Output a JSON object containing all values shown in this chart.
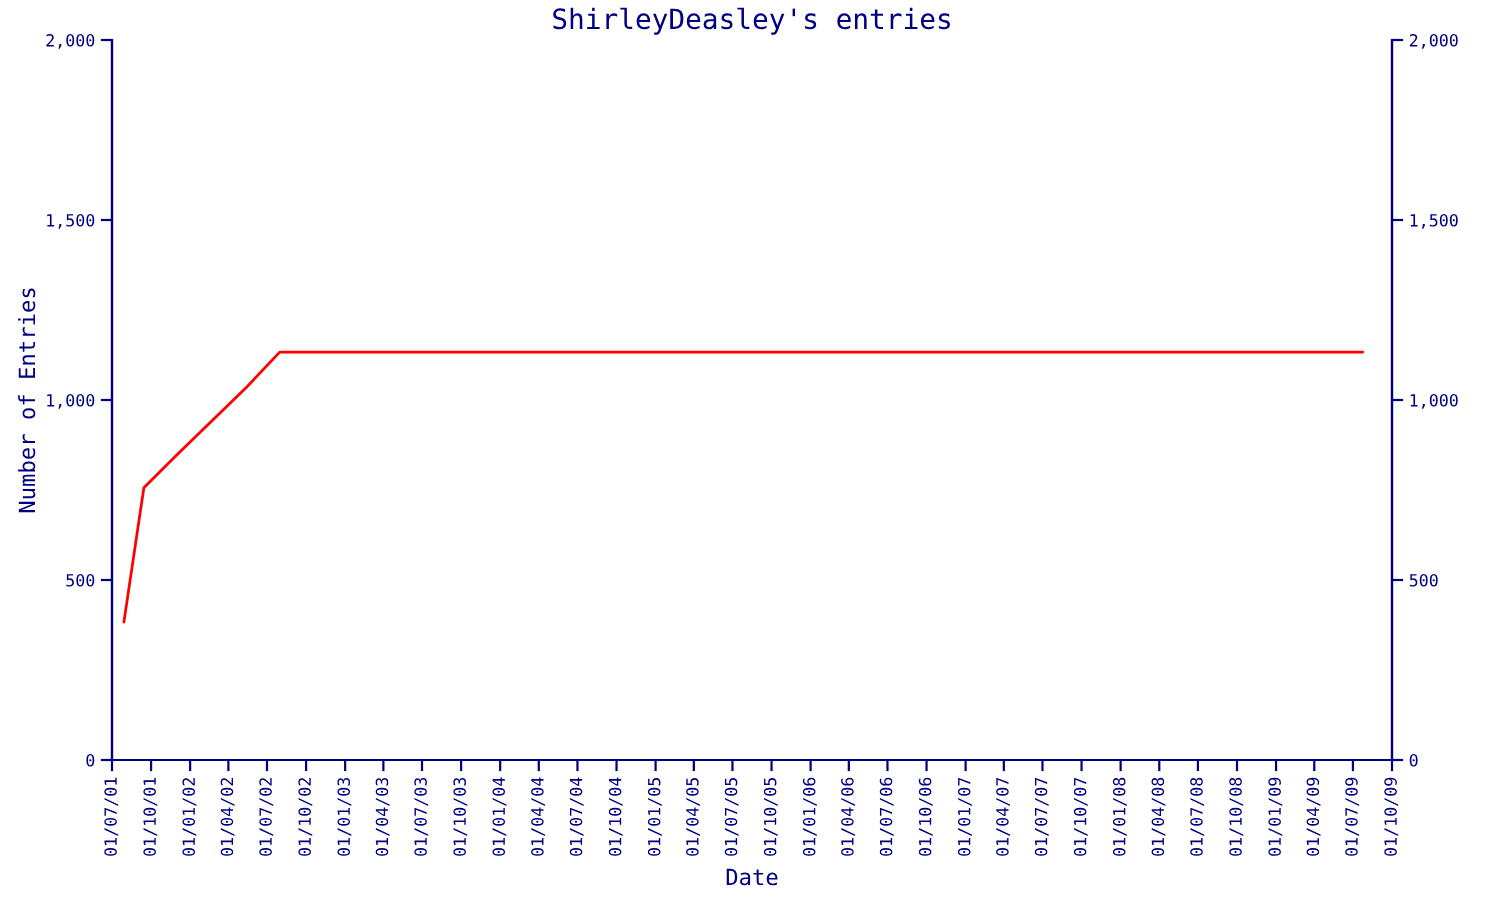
{
  "chart_data": {
    "type": "line",
    "title": "ShirleyDeasley's entries",
    "xlabel": "Date",
    "ylabel": "Number of Entries",
    "x": [
      "2001-07-29",
      "2001-09-14",
      "2001-12-01",
      "2002-05-15",
      "2002-07-31",
      "2009-07-24"
    ],
    "series": [
      {
        "color": "#ff0000",
        "values": [
          383,
          756,
          848,
          1037,
          1133,
          1133
        ]
      }
    ],
    "xlim": [
      "2001-07-01",
      "2009-10-01"
    ],
    "xticks": [
      {
        "value": "2001-07-01",
        "label": "01/07/01"
      },
      {
        "value": "2001-10-01",
        "label": "01/10/01"
      },
      {
        "value": "2002-01-01",
        "label": "01/01/02"
      },
      {
        "value": "2002-04-01",
        "label": "01/04/02"
      },
      {
        "value": "2002-07-01",
        "label": "01/07/02"
      },
      {
        "value": "2002-10-01",
        "label": "01/10/02"
      },
      {
        "value": "2003-01-01",
        "label": "01/01/03"
      },
      {
        "value": "2003-04-01",
        "label": "01/04/03"
      },
      {
        "value": "2003-07-01",
        "label": "01/07/03"
      },
      {
        "value": "2003-10-01",
        "label": "01/10/03"
      },
      {
        "value": "2004-01-01",
        "label": "01/01/04"
      },
      {
        "value": "2004-04-01",
        "label": "01/04/04"
      },
      {
        "value": "2004-07-01",
        "label": "01/07/04"
      },
      {
        "value": "2004-10-01",
        "label": "01/10/04"
      },
      {
        "value": "2005-01-01",
        "label": "01/01/05"
      },
      {
        "value": "2005-04-01",
        "label": "01/04/05"
      },
      {
        "value": "2005-07-01",
        "label": "01/07/05"
      },
      {
        "value": "2005-10-01",
        "label": "01/10/05"
      },
      {
        "value": "2006-01-01",
        "label": "01/01/06"
      },
      {
        "value": "2006-04-01",
        "label": "01/04/06"
      },
      {
        "value": "2006-07-01",
        "label": "01/07/06"
      },
      {
        "value": "2006-10-01",
        "label": "01/10/06"
      },
      {
        "value": "2007-01-01",
        "label": "01/01/07"
      },
      {
        "value": "2007-04-01",
        "label": "01/04/07"
      },
      {
        "value": "2007-07-01",
        "label": "01/07/07"
      },
      {
        "value": "2007-10-01",
        "label": "01/10/07"
      },
      {
        "value": "2008-01-01",
        "label": "01/01/08"
      },
      {
        "value": "2008-04-01",
        "label": "01/04/08"
      },
      {
        "value": "2008-07-01",
        "label": "01/07/08"
      },
      {
        "value": "2008-10-01",
        "label": "01/10/08"
      },
      {
        "value": "2009-01-01",
        "label": "01/01/09"
      },
      {
        "value": "2009-04-01",
        "label": "01/04/09"
      },
      {
        "value": "2009-07-01",
        "label": "01/07/09"
      },
      {
        "value": "2009-10-01",
        "label": "01/10/09"
      }
    ],
    "ylim": [
      0,
      2000
    ],
    "yticks": [
      0,
      500,
      {
        "value": 1000,
        "label": "1,000"
      },
      {
        "value": 1500,
        "label": "1,500"
      },
      {
        "value": 2000,
        "label": "2,000"
      }
    ],
    "y2lim": [
      0,
      2000
    ],
    "y2ticks": [
      0,
      500,
      {
        "value": 1000,
        "label": "1,000"
      },
      {
        "value": 1500,
        "label": "1,500"
      },
      {
        "value": 2000,
        "label": "2,000"
      }
    ],
    "grid": false,
    "legend": false,
    "marker": "none",
    "line_style": "solid"
  }
}
